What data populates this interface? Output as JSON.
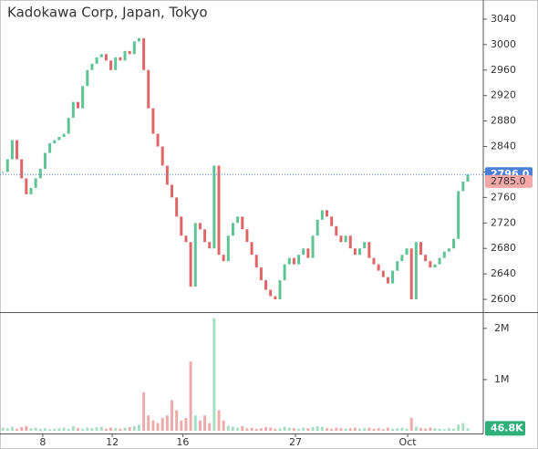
{
  "chart_data": [
    {
      "type": "price-bars",
      "title": "Kadokawa Corp, Japan, Tokyo",
      "values": [
        2800,
        2820,
        2850,
        2820,
        2790,
        2765,
        2775,
        2790,
        2805,
        2830,
        2845,
        2850,
        2855,
        2860,
        2885,
        2910,
        2900,
        2935,
        2960,
        2970,
        2980,
        2985,
        2975,
        2960,
        2980,
        2975,
        2990,
        2985,
        3005,
        3010,
        2960,
        2900,
        2860,
        2840,
        2810,
        2780,
        2760,
        2730,
        2700,
        2690,
        2620,
        2720,
        2710,
        2690,
        2680,
        2810,
        2670,
        2660,
        2700,
        2720,
        2730,
        2710,
        2690,
        2670,
        2650,
        2630,
        2615,
        2605,
        2600,
        2630,
        2655,
        2665,
        2655,
        2670,
        2680,
        2665,
        2700,
        2725,
        2740,
        2730,
        2715,
        2700,
        2690,
        2700,
        2680,
        2670,
        2680,
        2690,
        2665,
        2655,
        2645,
        2635,
        2625,
        2645,
        2660,
        2670,
        2680,
        2600,
        2690,
        2670,
        2660,
        2650,
        2655,
        2665,
        2675,
        2680,
        2695,
        2770,
        2785,
        2796
      ],
      "up_color": "#5fc495",
      "down_color": "#e06666",
      "xlim": [
        -0.6,
        102.3
      ],
      "ylim": [
        2580,
        3070
      ],
      "yticks": [
        2600,
        2640,
        2680,
        2720,
        2760,
        2800,
        2840,
        2880,
        2920,
        2960,
        3000,
        3040
      ],
      "last_price": {
        "value": 2796,
        "label": "2796.0"
      },
      "prev_close": {
        "value": 2785,
        "label": "2785.0"
      }
    },
    {
      "type": "volume",
      "values": [
        60000,
        50000,
        80000,
        40000,
        70000,
        90000,
        50000,
        60000,
        40000,
        50000,
        30000,
        40000,
        50000,
        60000,
        40000,
        90000,
        50000,
        40000,
        60000,
        50000,
        70000,
        80000,
        40000,
        60000,
        50000,
        40000,
        60000,
        70000,
        90000,
        120000,
        750000,
        300000,
        200000,
        150000,
        250000,
        300000,
        600000,
        400000,
        200000,
        250000,
        1350000,
        300000,
        200000,
        300000,
        150000,
        2200000,
        400000,
        200000,
        100000,
        80000,
        60000,
        90000,
        50000,
        60000,
        40000,
        50000,
        70000,
        60000,
        40000,
        50000,
        80000,
        60000,
        50000,
        40000,
        60000,
        50000,
        70000,
        90000,
        80000,
        50000,
        40000,
        60000,
        50000,
        40000,
        50000,
        60000,
        40000,
        50000,
        60000,
        40000,
        50000,
        30000,
        60000,
        40000,
        50000,
        60000,
        40000,
        250000,
        80000,
        50000,
        40000,
        60000,
        50000,
        40000,
        30000,
        50000,
        40000,
        120000,
        150000,
        46800
      ],
      "xlim": [
        -0.6,
        102.3
      ],
      "ylim": [
        0,
        2300000
      ],
      "yticks": [
        {
          "value": 1000000,
          "label": "1M"
        },
        {
          "value": 2000000,
          "label": "2M"
        }
      ],
      "xticks": [
        {
          "value": 8.5,
          "label": "8"
        },
        {
          "value": 23.3,
          "label": "12"
        },
        {
          "value": 38.3,
          "label": "16"
        },
        {
          "value": 62.3,
          "label": "27"
        },
        {
          "value": 86.2,
          "label": "Oct"
        }
      ],
      "last_volume": {
        "value": 46800,
        "label": "46.8K"
      }
    }
  ]
}
